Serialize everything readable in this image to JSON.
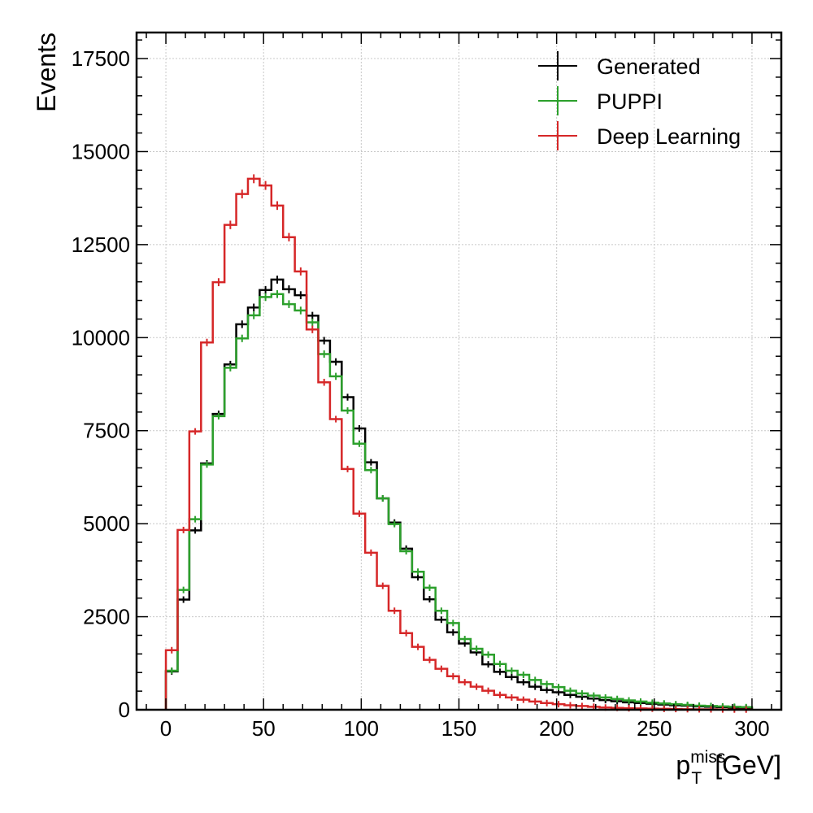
{
  "chart_data": {
    "type": "histogram-step",
    "title": "",
    "xlabel": {
      "main": "p",
      "sub": "T",
      "sup": "miss",
      "unit": "[GeV]"
    },
    "ylabel": "Events",
    "xlim": [
      -15,
      315
    ],
    "ylim": [
      0,
      18200
    ],
    "xticks": [
      0,
      50,
      100,
      150,
      200,
      250,
      300
    ],
    "yticks": [
      0,
      2500,
      5000,
      7500,
      10000,
      12500,
      15000,
      17500
    ],
    "grid": true,
    "legend_position": "top-right",
    "bin_edges": [
      0,
      6,
      12,
      18,
      24,
      30,
      36,
      42,
      48,
      54,
      60,
      66,
      72,
      78,
      84,
      90,
      96,
      102,
      108,
      114,
      120,
      126,
      132,
      138,
      144,
      150,
      156,
      162,
      168,
      174,
      180,
      186,
      192,
      198,
      204,
      210,
      216,
      222,
      228,
      234,
      240,
      246,
      252,
      258,
      264,
      270,
      276,
      282,
      288,
      294,
      300
    ],
    "series": [
      {
        "name": "Generated",
        "color": "#000000",
        "values": [
          1030,
          2960,
          4820,
          6620,
          7950,
          9280,
          10360,
          10810,
          11280,
          11560,
          11300,
          11140,
          10590,
          9920,
          9350,
          8400,
          7560,
          6650,
          5680,
          5030,
          4330,
          3560,
          2970,
          2420,
          2080,
          1780,
          1540,
          1220,
          1020,
          880,
          740,
          620,
          530,
          470,
          400,
          350,
          300,
          260,
          230,
          200,
          180,
          160,
          140,
          120,
          110,
          90,
          80,
          70,
          60,
          50
        ]
      },
      {
        "name": "PUPPI",
        "color": "#2ca02c",
        "values": [
          1050,
          3220,
          5120,
          6590,
          7890,
          9190,
          9980,
          10600,
          11090,
          11170,
          10900,
          10730,
          10410,
          9560,
          8960,
          8040,
          7150,
          6440,
          5680,
          4990,
          4260,
          3710,
          3280,
          2660,
          2330,
          1900,
          1640,
          1480,
          1230,
          1050,
          940,
          800,
          690,
          610,
          510,
          440,
          380,
          330,
          290,
          250,
          220,
          190,
          170,
          150,
          130,
          110,
          100,
          90,
          80,
          70
        ]
      },
      {
        "name": "Deep Learning",
        "color": "#d62728",
        "values": [
          1600,
          4830,
          7480,
          9870,
          11490,
          13030,
          13860,
          14270,
          14090,
          13550,
          12700,
          11780,
          10220,
          8800,
          7810,
          6470,
          5270,
          4220,
          3330,
          2660,
          2060,
          1690,
          1340,
          1100,
          900,
          740,
          620,
          510,
          400,
          330,
          270,
          220,
          180,
          150,
          120,
          100,
          80,
          60,
          50,
          40,
          35,
          30,
          25,
          20,
          15,
          12,
          10,
          8,
          6,
          5
        ]
      }
    ]
  }
}
